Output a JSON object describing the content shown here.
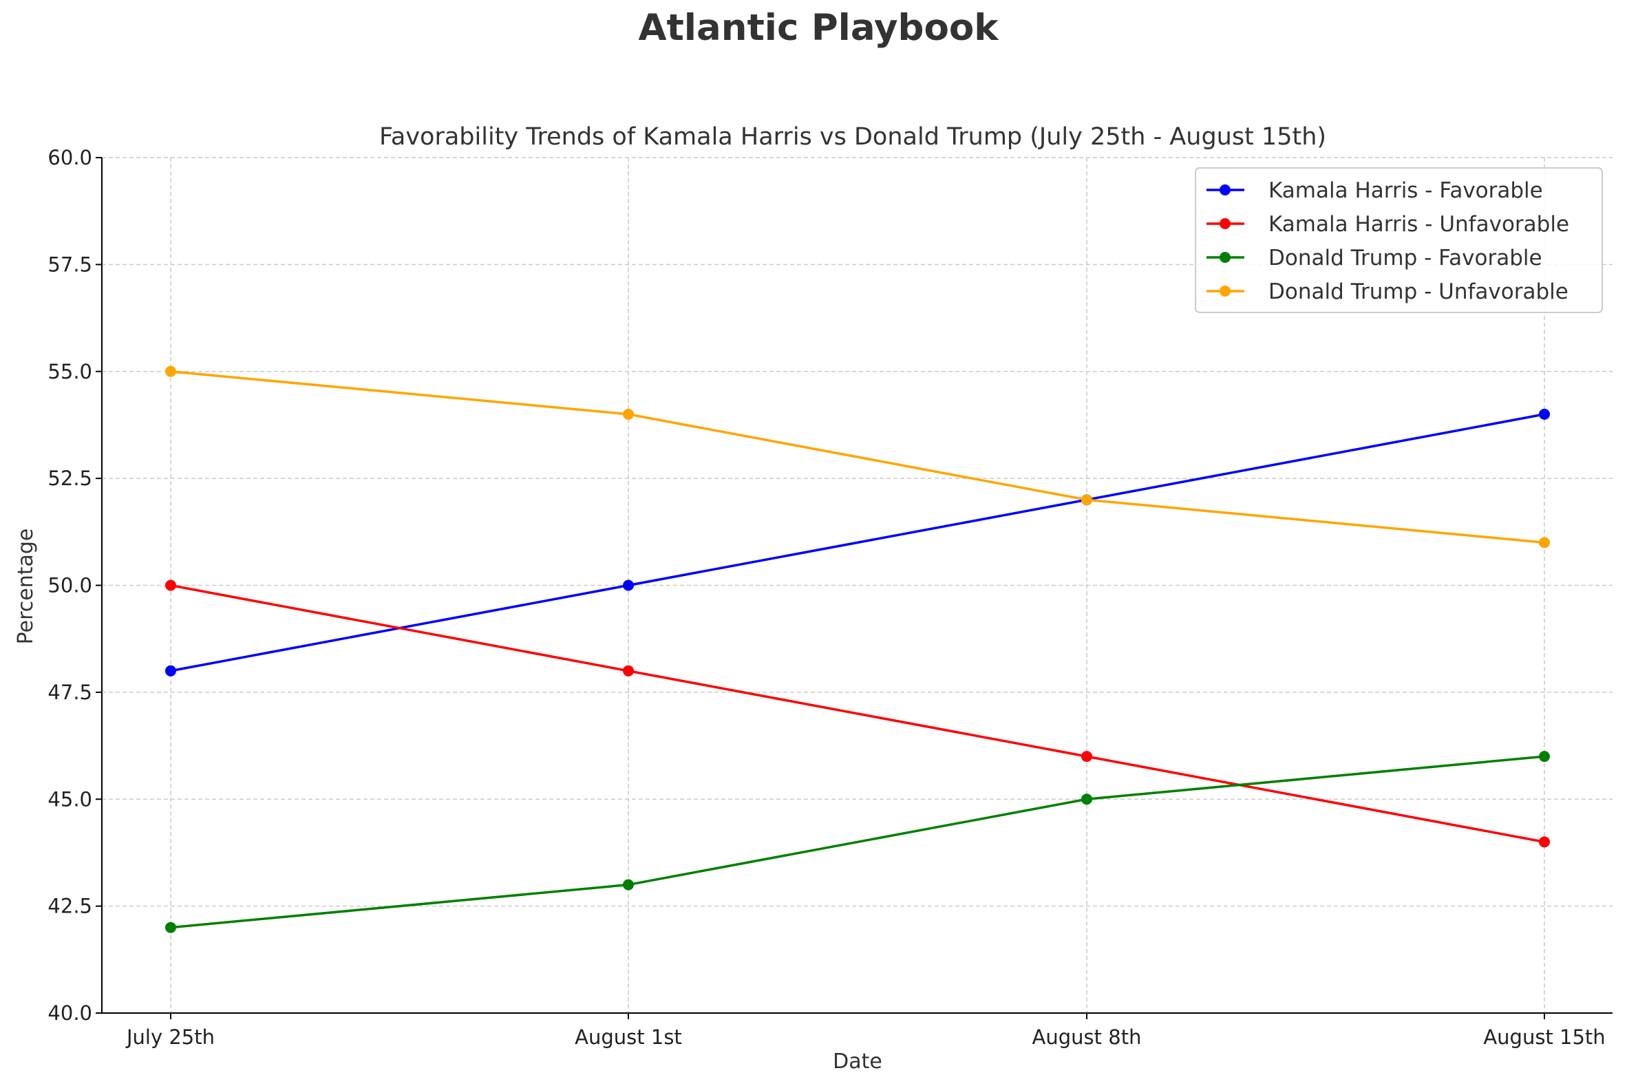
{
  "chart_data": {
    "type": "line",
    "suptitle": "Atlantic Playbook",
    "title": "Favorability Trends of Kamala Harris vs Donald Trump (July 25th - August 15th)",
    "xlabel": "Date",
    "ylabel": "Percentage",
    "categories": [
      "July 25th",
      "August 1st",
      "August 8th",
      "August 15th"
    ],
    "ylim": [
      40,
      60
    ],
    "yticks": [
      "40.0",
      "42.5",
      "45.0",
      "47.5",
      "50.0",
      "52.5",
      "55.0",
      "57.5",
      "60.0"
    ],
    "grid": true,
    "legend_position": "top-right",
    "series": [
      {
        "name": "Kamala Harris - Favorable",
        "color": "#0000ff",
        "values": [
          48,
          50,
          52,
          54
        ]
      },
      {
        "name": "Kamala Harris - Unfavorable",
        "color": "#ff0000",
        "values": [
          50,
          48,
          46,
          44
        ]
      },
      {
        "name": "Donald Trump - Favorable",
        "color": "#008000",
        "values": [
          42,
          43,
          45,
          46
        ]
      },
      {
        "name": "Donald Trump - Unfavorable",
        "color": "#ffa500",
        "values": [
          55,
          54,
          52,
          51
        ]
      }
    ]
  }
}
